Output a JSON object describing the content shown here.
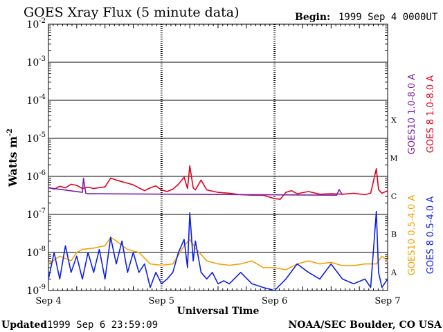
{
  "chart_data": {
    "type": "line",
    "title": "GOES Xray Flux (5 minute data)",
    "begin_label": "Begin:",
    "begin_value": "1999 Sep 4 0000UT",
    "ylabel": "Watts m",
    "ylabel_exponent": "-2",
    "xlabel": "Universal Time",
    "yscale": "log",
    "ylim": [
      1e-09,
      0.01
    ],
    "x_unit": "days since 1999 Sep 4 0000UT",
    "xlim": [
      0,
      3
    ],
    "x_ticks": [
      {
        "x": 0,
        "label": "Sep 4"
      },
      {
        "x": 1,
        "label": "Sep 5"
      },
      {
        "x": 2,
        "label": "Sep 6"
      },
      {
        "x": 3,
        "label": "Sep 7"
      }
    ],
    "y_ticks": [
      {
        "exp": -2,
        "label": "10"
      },
      {
        "exp": -3,
        "label": "10"
      },
      {
        "exp": -4,
        "label": "10"
      },
      {
        "exp": -5,
        "label": "10"
      },
      {
        "exp": -6,
        "label": "10"
      },
      {
        "exp": -7,
        "label": "10"
      },
      {
        "exp": -8,
        "label": "10"
      },
      {
        "exp": -9,
        "label": "10"
      }
    ],
    "flare_classes": [
      {
        "label": "X",
        "exp": -4
      },
      {
        "label": "M",
        "exp": -5
      },
      {
        "label": "C",
        "exp": -6
      },
      {
        "label": "B",
        "exp": -7
      },
      {
        "label": "A",
        "exp": -8
      }
    ],
    "series": [
      {
        "name": "GOES10 1.0-8.0 A",
        "color": "#7a1fa8",
        "x": [
          0,
          0.3,
          0.31,
          0.33,
          0.35,
          2.55,
          2.57,
          2.6
        ],
        "y": [
          5e-07,
          3.8e-07,
          9e-07,
          3.6e-07,
          3.5e-07,
          3.2e-07,
          4.5e-07,
          3.3e-07
        ]
      },
      {
        "name": "GOES 8 1.0-8.0 A",
        "color": "#e0001c",
        "x": [
          0,
          0.05,
          0.1,
          0.15,
          0.2,
          0.25,
          0.3,
          0.35,
          0.4,
          0.5,
          0.55,
          0.6,
          0.65,
          0.7,
          0.75,
          0.8,
          0.85,
          0.9,
          0.95,
          1.0,
          1.05,
          1.1,
          1.15,
          1.2,
          1.23,
          1.25,
          1.28,
          1.3,
          1.35,
          1.4,
          1.5,
          1.6,
          1.7,
          1.8,
          1.9,
          2.0,
          2.05,
          2.1,
          2.15,
          2.2,
          2.3,
          2.4,
          2.5,
          2.6,
          2.7,
          2.8,
          2.85,
          2.9,
          2.92,
          2.95,
          3.0
        ],
        "y": [
          5.2e-07,
          4.6e-07,
          5.5e-07,
          5e-07,
          6.2e-07,
          5.8e-07,
          4.8e-07,
          5.2e-07,
          4.8e-07,
          5.3e-07,
          9e-07,
          8e-07,
          7.2e-07,
          6.6e-07,
          6e-07,
          5e-07,
          4.2e-07,
          5e-07,
          5.6e-07,
          4.4e-07,
          4e-07,
          4.6e-07,
          6.2e-07,
          9.5e-07,
          4.8e-07,
          1.9e-06,
          5e-07,
          4.4e-07,
          8e-07,
          4.4e-07,
          3.8e-07,
          3.6e-07,
          3.3e-07,
          3.2e-07,
          3.2e-07,
          2.6e-07,
          2.5e-07,
          3.8e-07,
          4.2e-07,
          3.5e-07,
          4e-07,
          3.4e-07,
          3.5e-07,
          3.4e-07,
          3.6e-07,
          3.3e-07,
          3.6e-07,
          1.6e-06,
          4.5e-07,
          3.6e-07,
          4.2e-07
        ]
      },
      {
        "name": "GOES10 0.5-4.0 A",
        "color": "#f5a000",
        "x": [
          0,
          0.1,
          0.2,
          0.25,
          0.3,
          0.4,
          0.5,
          0.55,
          0.6,
          0.7,
          0.8,
          0.9,
          1.0,
          1.1,
          1.2,
          1.25,
          1.3,
          1.4,
          1.5,
          1.6,
          1.7,
          1.8,
          1.9,
          2.0,
          2.1,
          2.2,
          2.3,
          2.4,
          2.5,
          2.6,
          2.7,
          2.8,
          2.9,
          2.95,
          3.0
        ],
        "y": [
          5e-09,
          8e-09,
          6e-09,
          1e-08,
          1.2e-08,
          1.3e-08,
          1.5e-08,
          2.5e-08,
          2e-08,
          1.2e-08,
          1e-08,
          5e-09,
          4.6e-09,
          5e-09,
          1.5e-08,
          2.2e-08,
          1.3e-08,
          6e-09,
          5e-09,
          4.6e-09,
          5e-09,
          6e-09,
          4e-09,
          4e-09,
          3.5e-09,
          5e-09,
          6e-09,
          5e-09,
          5.5e-09,
          4.5e-09,
          4.5e-09,
          5e-09,
          5e-09,
          8e-09,
          6e-09
        ]
      },
      {
        "name": "GOES 8 0.5-4.0 A",
        "color": "#0a1ee8",
        "x": [
          0,
          0.05,
          0.1,
          0.15,
          0.2,
          0.25,
          0.3,
          0.35,
          0.4,
          0.45,
          0.5,
          0.55,
          0.6,
          0.65,
          0.7,
          0.75,
          0.8,
          0.85,
          0.9,
          0.95,
          1.0,
          1.05,
          1.1,
          1.15,
          1.2,
          1.23,
          1.25,
          1.28,
          1.3,
          1.35,
          1.4,
          1.45,
          1.5,
          1.55,
          1.6,
          1.7,
          1.8,
          1.9,
          2.0,
          2.1,
          2.2,
          2.3,
          2.4,
          2.5,
          2.6,
          2.7,
          2.8,
          2.85,
          2.9,
          2.92,
          2.95,
          3.0
        ],
        "y": [
          2e-09,
          1e-08,
          2e-09,
          1.5e-08,
          3e-09,
          8e-09,
          2e-09,
          1e-08,
          3e-09,
          1.2e-08,
          2e-09,
          2.5e-08,
          5e-09,
          2e-08,
          3e-09,
          1e-08,
          3e-09,
          5e-09,
          1.2e-09,
          3e-09,
          1.5e-09,
          2e-09,
          3e-09,
          1e-08,
          2.2e-08,
          4e-09,
          1.1e-07,
          6e-09,
          2e-08,
          3e-09,
          2e-09,
          3e-09,
          1.5e-09,
          1.8e-09,
          1.5e-09,
          3e-09,
          1.5e-09,
          1.2e-09,
          1e-09,
          2e-09,
          5e-09,
          3e-09,
          2e-09,
          5e-09,
          2e-09,
          1.5e-09,
          2e-09,
          1.2e-09,
          1.2e-07,
          3e-09,
          1.2e-09,
          2e-09
        ]
      }
    ],
    "grid": true,
    "legend_placement": "right, vertical"
  },
  "footer": {
    "updated_label": "Updated",
    "updated_value": "1999 Sep  6 23:59:09",
    "source": "NOAA/SEC Boulder, CO USA"
  }
}
